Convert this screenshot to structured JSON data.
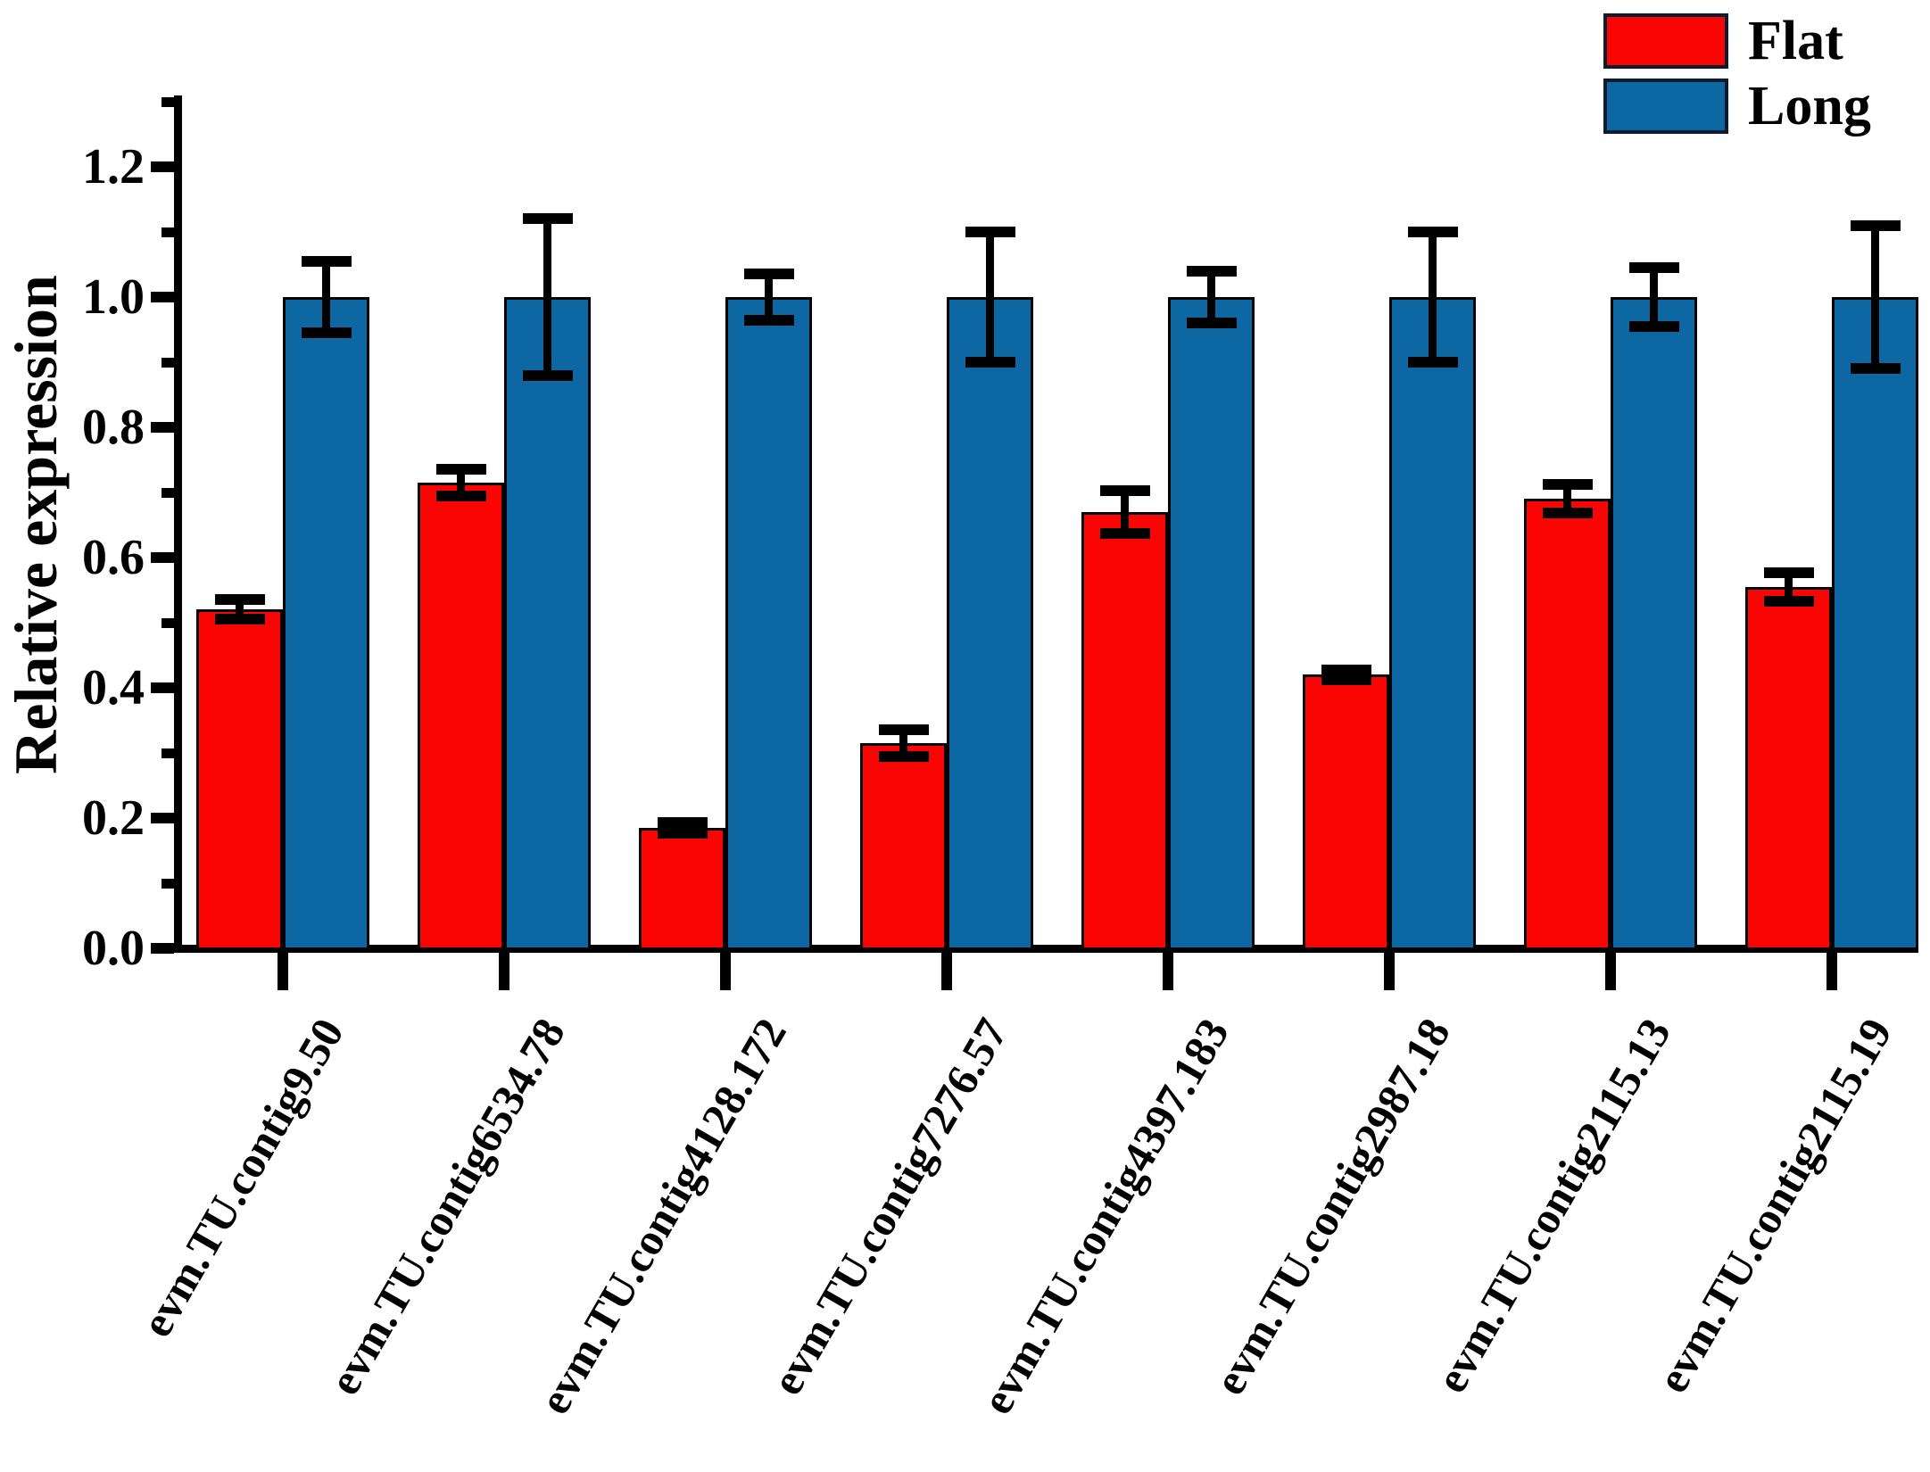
{
  "figure": {
    "background": "#ffffff",
    "ylabel": "Relative expression"
  },
  "legend": {
    "position": "top-right",
    "items": [
      {
        "label": "Flat",
        "color": "#fb0404"
      },
      {
        "label": "Long",
        "color": "#0c67a2"
      }
    ]
  },
  "chart_data": {
    "type": "bar",
    "title": "",
    "xlabel": "",
    "ylabel": "Relative expression",
    "ylim": [
      0,
      1.31
    ],
    "yticks": [
      0.0,
      0.2,
      0.4,
      0.6,
      0.8,
      1.0,
      1.2
    ],
    "ytick_labels": [
      "0.0",
      "0.2",
      "0.4",
      "0.6",
      "0.8",
      "1.0",
      "1.2"
    ],
    "minor_yticks": [
      0.1,
      0.3,
      0.5,
      0.7,
      0.9,
      1.1,
      1.3
    ],
    "grid": false,
    "legend_position": "top-right",
    "error_bars": true,
    "categories": [
      "evm.TU.contig9.50",
      "evm.TU.contig6534.78",
      "evm.TU.contig4128.172",
      "evm.TU.contig7276.57",
      "evm.TU.contig4397.183",
      "evm.TU.contig2987.18",
      "evm.TU.contig2115.13",
      "evm.TU.contig2115.19"
    ],
    "series": [
      {
        "name": "Flat",
        "color": "#fb0404",
        "values": [
          0.52,
          0.715,
          0.185,
          0.315,
          0.67,
          0.42,
          0.69,
          0.555
        ],
        "errors": [
          0.015,
          0.02,
          0.008,
          0.02,
          0.033,
          0.008,
          0.022,
          0.022
        ]
      },
      {
        "name": "Long",
        "color": "#0c67a2",
        "values": [
          1.0,
          1.0,
          1.0,
          1.0,
          1.0,
          1.0,
          1.0,
          1.0
        ],
        "errors": [
          0.055,
          0.12,
          0.035,
          0.1,
          0.04,
          0.1,
          0.045,
          0.11
        ]
      }
    ]
  }
}
